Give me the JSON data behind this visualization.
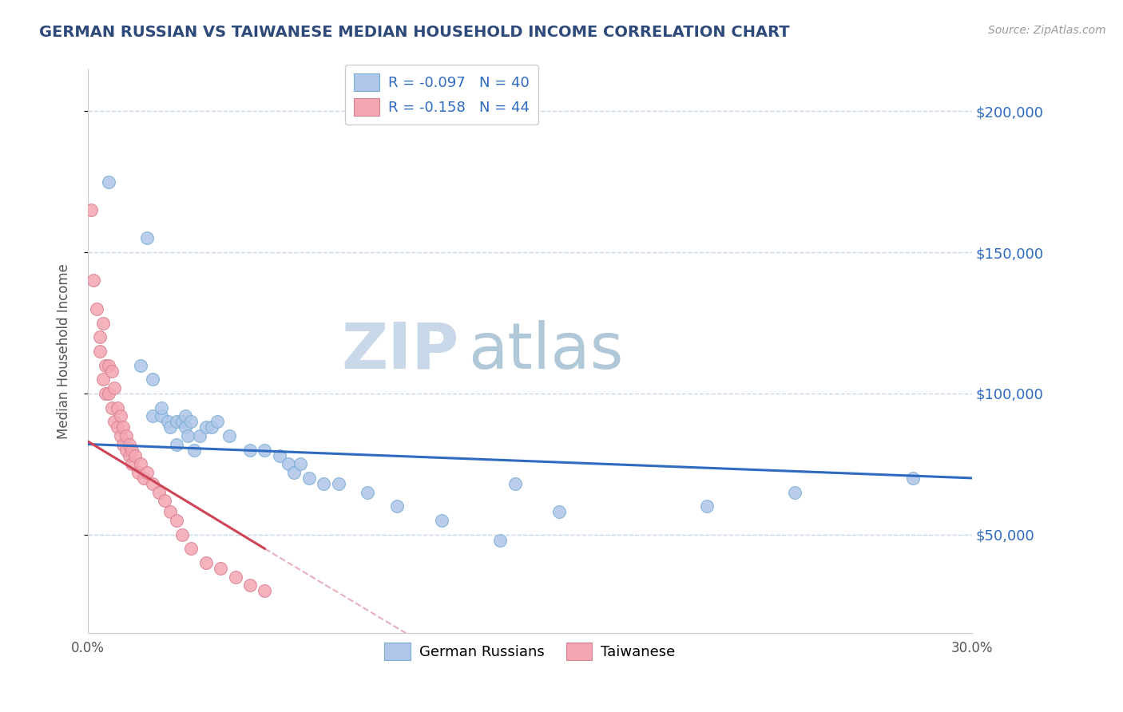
{
  "title": "GERMAN RUSSIAN VS TAIWANESE MEDIAN HOUSEHOLD INCOME CORRELATION CHART",
  "source": "Source: ZipAtlas.com",
  "ylabel": "Median Household Income",
  "yticks": [
    50000,
    100000,
    150000,
    200000
  ],
  "ytick_labels": [
    "$50,000",
    "$100,000",
    "$150,000",
    "$200,000"
  ],
  "xmin": 0.0,
  "xmax": 0.3,
  "ymin": 15000,
  "ymax": 215000,
  "legend_r1": "-0.097",
  "legend_n1": "40",
  "legend_r2": "-0.158",
  "legend_n2": "44",
  "watermark_zip": "ZIP",
  "watermark_atlas": "atlas",
  "blue_scatter_x": [
    0.007,
    0.02,
    0.018,
    0.022,
    0.022,
    0.025,
    0.025,
    0.027,
    0.028,
    0.03,
    0.03,
    0.032,
    0.033,
    0.033,
    0.034,
    0.035,
    0.036,
    0.038,
    0.04,
    0.042,
    0.044,
    0.048,
    0.055,
    0.06,
    0.065,
    0.068,
    0.07,
    0.072,
    0.075,
    0.08,
    0.085,
    0.095,
    0.105,
    0.12,
    0.14,
    0.145,
    0.16,
    0.21,
    0.24,
    0.28
  ],
  "blue_scatter_y": [
    175000,
    155000,
    110000,
    105000,
    92000,
    92000,
    95000,
    90000,
    88000,
    90000,
    82000,
    90000,
    88000,
    92000,
    85000,
    90000,
    80000,
    85000,
    88000,
    88000,
    90000,
    85000,
    80000,
    80000,
    78000,
    75000,
    72000,
    75000,
    70000,
    68000,
    68000,
    65000,
    60000,
    55000,
    48000,
    68000,
    58000,
    60000,
    65000,
    70000
  ],
  "pink_scatter_x": [
    0.001,
    0.002,
    0.003,
    0.004,
    0.004,
    0.005,
    0.005,
    0.006,
    0.006,
    0.007,
    0.007,
    0.008,
    0.008,
    0.009,
    0.009,
    0.01,
    0.01,
    0.011,
    0.011,
    0.012,
    0.012,
    0.013,
    0.013,
    0.014,
    0.014,
    0.015,
    0.015,
    0.016,
    0.017,
    0.018,
    0.019,
    0.02,
    0.022,
    0.024,
    0.026,
    0.028,
    0.03,
    0.032,
    0.035,
    0.04,
    0.045,
    0.05,
    0.055,
    0.06
  ],
  "pink_scatter_y": [
    165000,
    140000,
    130000,
    120000,
    115000,
    125000,
    105000,
    110000,
    100000,
    110000,
    100000,
    108000,
    95000,
    102000,
    90000,
    95000,
    88000,
    92000,
    85000,
    88000,
    82000,
    85000,
    80000,
    82000,
    78000,
    80000,
    75000,
    78000,
    72000,
    75000,
    70000,
    72000,
    68000,
    65000,
    62000,
    58000,
    55000,
    50000,
    45000,
    40000,
    38000,
    35000,
    32000,
    30000
  ],
  "blue_color": "#aec6e8",
  "pink_color": "#f4a7b2",
  "blue_line_color": "#2e6abf",
  "pink_line_color": "#cc4455",
  "pink_line_dashed_color": "#e8b0b8",
  "background_color": "#ffffff",
  "grid_color": "#c8d8e8",
  "title_color": "#2e4a7a",
  "watermark_color_zip": "#c8d8e8",
  "watermark_color_atlas": "#b0c8d8"
}
